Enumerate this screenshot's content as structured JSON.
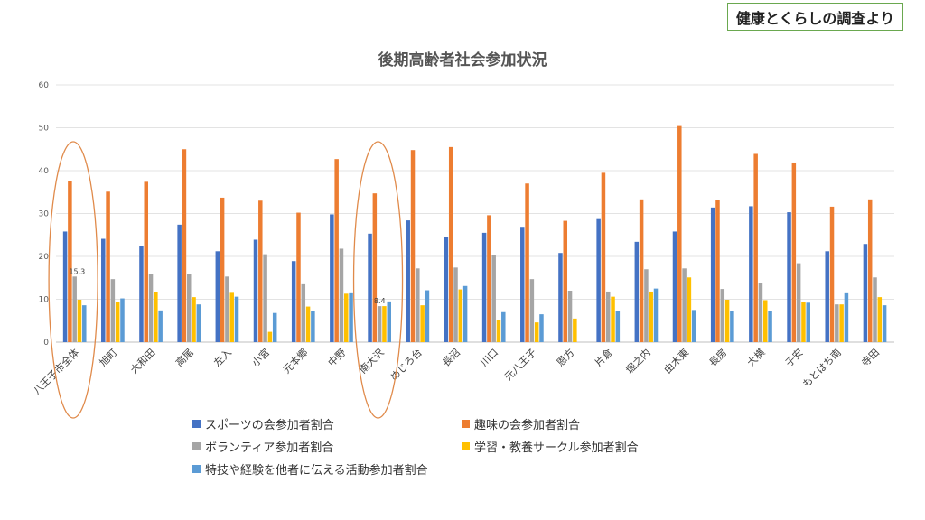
{
  "source_label": "健康とくらしの調査より",
  "chart_data": {
    "type": "bar",
    "title": "後期高齢者社会参加状況",
    "xlabel": "",
    "ylabel": "",
    "ylim": [
      0,
      60
    ],
    "yticks": [
      0,
      10,
      20,
      30,
      40,
      50,
      60
    ],
    "grid": true,
    "legend_position": "bottom",
    "categories": [
      "八王子市全体",
      "旭町",
      "大和田",
      "高尾",
      "左入",
      "小宮",
      "元本郷",
      "中野",
      "南大沢",
      "めじろ台",
      "長沼",
      "川口",
      "元八王子",
      "恩方",
      "片倉",
      "堀之内",
      "由木東",
      "長房",
      "大横",
      "子安",
      "もとはち南",
      "寺田"
    ],
    "series": [
      {
        "name": "スポーツの会参加者割合",
        "color": "#4472c4",
        "values": [
          25.8,
          24.1,
          22.5,
          27.4,
          21.2,
          23.9,
          18.9,
          29.8,
          25.3,
          28.4,
          24.6,
          25.5,
          26.9,
          20.8,
          28.7,
          23.4,
          25.8,
          31.4,
          31.7,
          30.3,
          21.2,
          22.9
        ]
      },
      {
        "name": "趣味の会参加者割合",
        "color": "#ed7d31",
        "values": [
          37.6,
          35.1,
          37.4,
          45.0,
          33.7,
          33.0,
          30.2,
          42.7,
          34.7,
          44.8,
          45.5,
          29.6,
          37.0,
          28.3,
          39.5,
          33.3,
          50.4,
          33.1,
          43.9,
          41.9,
          31.6,
          33.3
        ]
      },
      {
        "name": "ボランティア参加者割合",
        "color": "#a5a5a5",
        "values": [
          15.3,
          14.7,
          15.8,
          15.9,
          15.3,
          20.5,
          13.5,
          21.8,
          8.4,
          17.2,
          17.4,
          20.4,
          14.7,
          12.0,
          11.8,
          17.0,
          17.2,
          12.4,
          13.7,
          18.4,
          8.8,
          15.1
        ]
      },
      {
        "name": "学習・教養サークル参加者割合",
        "color": "#ffc000",
        "values": [
          9.9,
          9.4,
          11.7,
          10.5,
          11.5,
          2.4,
          8.3,
          11.3,
          8.4,
          8.6,
          12.3,
          5.1,
          4.6,
          5.5,
          10.6,
          11.8,
          15.1,
          9.9,
          9.8,
          9.3,
          8.8,
          10.5
        ]
      },
      {
        "name": "特技や経験を他者に伝える活動参加者割合",
        "color": "#5b9bd5",
        "values": [
          8.6,
          10.2,
          7.4,
          8.8,
          10.6,
          6.8,
          7.3,
          11.4,
          9.5,
          12.1,
          13.1,
          7.0,
          6.5,
          0,
          7.3,
          12.5,
          7.5,
          7.3,
          7.2,
          9.2,
          11.4,
          8.6
        ]
      }
    ],
    "data_labels": [
      {
        "category": "八王子市全体",
        "series": "ボランティア参加者割合",
        "text": "15.3"
      },
      {
        "category": "南大沢",
        "series": "ボランティア参加者割合",
        "text": "8.4"
      }
    ],
    "highlighted_categories": [
      "八王子市全体",
      "南大沢"
    ],
    "highlight_color": "#e08a4a"
  }
}
